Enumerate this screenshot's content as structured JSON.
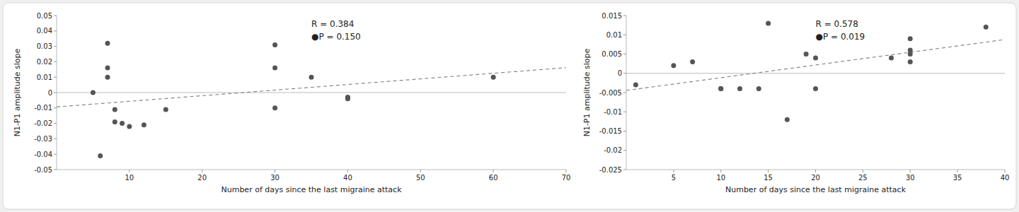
{
  "chart_data": [
    {
      "type": "scatter",
      "x": [
        5,
        6,
        7,
        7,
        7,
        8,
        8,
        9,
        10,
        12,
        15,
        30,
        30,
        30,
        35,
        40,
        40,
        60
      ],
      "y": [
        0.0,
        -0.041,
        0.032,
        0.016,
        0.01,
        -0.011,
        -0.019,
        -0.02,
        -0.022,
        -0.021,
        -0.011,
        0.031,
        -0.01,
        0.016,
        0.01,
        -0.004,
        -0.003,
        0.01
      ],
      "color": "#555555",
      "trend_line": {
        "x": [
          0,
          70
        ],
        "y": [
          -0.009319,
          0.0161736
        ],
        "color": "#888888",
        "line_style": "dashed"
      },
      "hline": 0,
      "xlim": [
        0,
        70
      ],
      "xticks": [
        10,
        20,
        30,
        40,
        50,
        60,
        70
      ],
      "ylim": [
        -0.05,
        0.05
      ],
      "yticks": [
        -0.05,
        -0.04,
        -0.03,
        -0.02,
        -0.01,
        0,
        0.01,
        0.02,
        0.03,
        0.04,
        0.05
      ],
      "xlabel": "Number of days since the last migraine attack",
      "ylabel": "N1-P1 amplitude slope",
      "annotations": [
        "R = 0.384",
        "●P = 0.150"
      ],
      "grid": false
    },
    {
      "type": "scatter",
      "x": [
        1,
        5,
        7,
        10,
        10,
        12,
        14,
        15,
        17,
        19,
        20,
        20,
        28,
        30,
        30,
        30,
        30,
        38
      ],
      "y": [
        -0.003,
        0.002,
        0.003,
        -0.004,
        -0.004,
        -0.004,
        -0.004,
        0.013,
        -0.012,
        0.005,
        0.004,
        -0.004,
        0.004,
        0.009,
        0.006,
        0.005,
        0.003,
        0.012
      ],
      "color": "#555555",
      "trend_line": {
        "x": [
          0,
          40
        ],
        "y": [
          -0.0044393,
          0.0087639
        ],
        "color": "#888888",
        "line_style": "dashed"
      },
      "hline": 0,
      "xlim": [
        0,
        40
      ],
      "xticks": [
        5,
        10,
        15,
        20,
        25,
        30,
        35,
        40
      ],
      "ylim": [
        -0.025,
        0.015
      ],
      "yticks": [
        -0.025,
        -0.02,
        -0.015,
        -0.01,
        -0.005,
        0,
        0.005,
        0.01,
        0.015
      ],
      "xlabel": "Number of days since the last migraine attack",
      "ylabel": "N1-P1 amplitude slope",
      "annotations": [
        "R = 0.578",
        "●P = 0.019"
      ],
      "grid": false
    }
  ]
}
